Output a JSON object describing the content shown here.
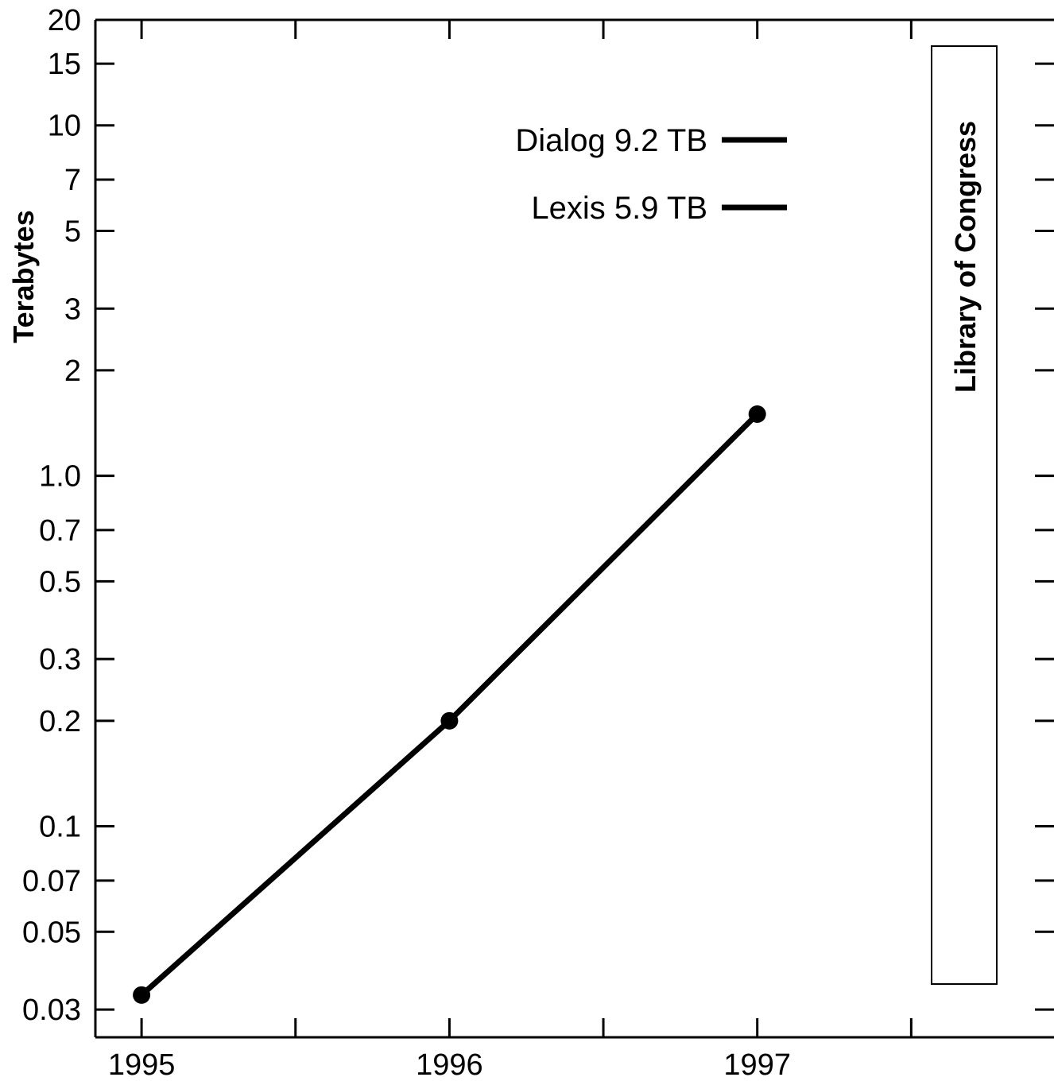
{
  "chart_data": {
    "type": "line",
    "ylabel": "Terabytes",
    "y_scale": "log",
    "ylim": [
      0.025,
      20
    ],
    "xlim": [
      1994.85,
      1998.0
    ],
    "y_ticks": [
      0.03,
      0.05,
      0.07,
      0.1,
      0.2,
      0.3,
      0.5,
      0.7,
      1.0,
      2,
      3,
      5,
      7,
      10,
      15,
      20
    ],
    "y_tick_labels": [
      "0.03",
      "0.05",
      "0.07",
      "0.1",
      "0.2",
      "0.3",
      "0.5",
      "0.7",
      "1.0",
      "2",
      "3",
      "5",
      "7",
      "10",
      "15",
      "20"
    ],
    "x_ticks": [
      1995,
      1995.5,
      1996,
      1996.5,
      1997,
      1997.5,
      1998
    ],
    "x_tick_labels": [
      "1995",
      "",
      "1996",
      "",
      "1997",
      "",
      ""
    ],
    "grid": false,
    "series": [
      {
        "x": [
          1995,
          1996,
          1997
        ],
        "values": [
          0.033,
          0.2,
          1.5
        ],
        "color": "#000000"
      }
    ],
    "reference_lines": [
      {
        "label": "Dialog 9.2 TB",
        "value": 9.2
      },
      {
        "label": "Lexis 5.9 TB",
        "value": 5.9
      }
    ],
    "annotation": {
      "label": "Library of Congress"
    }
  }
}
